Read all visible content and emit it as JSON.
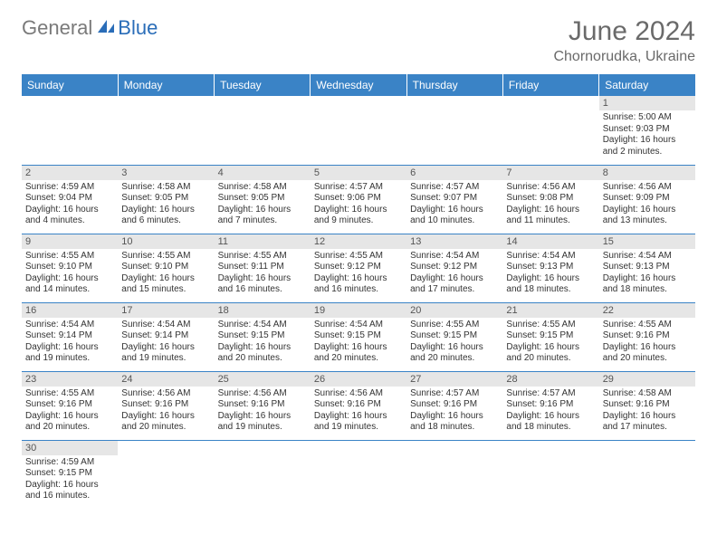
{
  "logo": {
    "text_gray": "General",
    "text_blue": "Blue"
  },
  "title": "June 2024",
  "location": "Chornorudka, Ukraine",
  "colors": {
    "header_bg": "#3a83c6",
    "header_text": "#ffffff",
    "daynum_bg": "#e6e6e6",
    "border": "#3a83c6",
    "title_color": "#6a6a6a",
    "logo_gray": "#7a7a7a",
    "logo_blue": "#2a6db8"
  },
  "weekdays": [
    "Sunday",
    "Monday",
    "Tuesday",
    "Wednesday",
    "Thursday",
    "Friday",
    "Saturday"
  ],
  "weeks": [
    [
      null,
      null,
      null,
      null,
      null,
      null,
      {
        "n": "1",
        "sunrise": "Sunrise: 5:00 AM",
        "sunset": "Sunset: 9:03 PM",
        "day1": "Daylight: 16 hours",
        "day2": "and 2 minutes."
      }
    ],
    [
      {
        "n": "2",
        "sunrise": "Sunrise: 4:59 AM",
        "sunset": "Sunset: 9:04 PM",
        "day1": "Daylight: 16 hours",
        "day2": "and 4 minutes."
      },
      {
        "n": "3",
        "sunrise": "Sunrise: 4:58 AM",
        "sunset": "Sunset: 9:05 PM",
        "day1": "Daylight: 16 hours",
        "day2": "and 6 minutes."
      },
      {
        "n": "4",
        "sunrise": "Sunrise: 4:58 AM",
        "sunset": "Sunset: 9:05 PM",
        "day1": "Daylight: 16 hours",
        "day2": "and 7 minutes."
      },
      {
        "n": "5",
        "sunrise": "Sunrise: 4:57 AM",
        "sunset": "Sunset: 9:06 PM",
        "day1": "Daylight: 16 hours",
        "day2": "and 9 minutes."
      },
      {
        "n": "6",
        "sunrise": "Sunrise: 4:57 AM",
        "sunset": "Sunset: 9:07 PM",
        "day1": "Daylight: 16 hours",
        "day2": "and 10 minutes."
      },
      {
        "n": "7",
        "sunrise": "Sunrise: 4:56 AM",
        "sunset": "Sunset: 9:08 PM",
        "day1": "Daylight: 16 hours",
        "day2": "and 11 minutes."
      },
      {
        "n": "8",
        "sunrise": "Sunrise: 4:56 AM",
        "sunset": "Sunset: 9:09 PM",
        "day1": "Daylight: 16 hours",
        "day2": "and 13 minutes."
      }
    ],
    [
      {
        "n": "9",
        "sunrise": "Sunrise: 4:55 AM",
        "sunset": "Sunset: 9:10 PM",
        "day1": "Daylight: 16 hours",
        "day2": "and 14 minutes."
      },
      {
        "n": "10",
        "sunrise": "Sunrise: 4:55 AM",
        "sunset": "Sunset: 9:10 PM",
        "day1": "Daylight: 16 hours",
        "day2": "and 15 minutes."
      },
      {
        "n": "11",
        "sunrise": "Sunrise: 4:55 AM",
        "sunset": "Sunset: 9:11 PM",
        "day1": "Daylight: 16 hours",
        "day2": "and 16 minutes."
      },
      {
        "n": "12",
        "sunrise": "Sunrise: 4:55 AM",
        "sunset": "Sunset: 9:12 PM",
        "day1": "Daylight: 16 hours",
        "day2": "and 16 minutes."
      },
      {
        "n": "13",
        "sunrise": "Sunrise: 4:54 AM",
        "sunset": "Sunset: 9:12 PM",
        "day1": "Daylight: 16 hours",
        "day2": "and 17 minutes."
      },
      {
        "n": "14",
        "sunrise": "Sunrise: 4:54 AM",
        "sunset": "Sunset: 9:13 PM",
        "day1": "Daylight: 16 hours",
        "day2": "and 18 minutes."
      },
      {
        "n": "15",
        "sunrise": "Sunrise: 4:54 AM",
        "sunset": "Sunset: 9:13 PM",
        "day1": "Daylight: 16 hours",
        "day2": "and 18 minutes."
      }
    ],
    [
      {
        "n": "16",
        "sunrise": "Sunrise: 4:54 AM",
        "sunset": "Sunset: 9:14 PM",
        "day1": "Daylight: 16 hours",
        "day2": "and 19 minutes."
      },
      {
        "n": "17",
        "sunrise": "Sunrise: 4:54 AM",
        "sunset": "Sunset: 9:14 PM",
        "day1": "Daylight: 16 hours",
        "day2": "and 19 minutes."
      },
      {
        "n": "18",
        "sunrise": "Sunrise: 4:54 AM",
        "sunset": "Sunset: 9:15 PM",
        "day1": "Daylight: 16 hours",
        "day2": "and 20 minutes."
      },
      {
        "n": "19",
        "sunrise": "Sunrise: 4:54 AM",
        "sunset": "Sunset: 9:15 PM",
        "day1": "Daylight: 16 hours",
        "day2": "and 20 minutes."
      },
      {
        "n": "20",
        "sunrise": "Sunrise: 4:55 AM",
        "sunset": "Sunset: 9:15 PM",
        "day1": "Daylight: 16 hours",
        "day2": "and 20 minutes."
      },
      {
        "n": "21",
        "sunrise": "Sunrise: 4:55 AM",
        "sunset": "Sunset: 9:15 PM",
        "day1": "Daylight: 16 hours",
        "day2": "and 20 minutes."
      },
      {
        "n": "22",
        "sunrise": "Sunrise: 4:55 AM",
        "sunset": "Sunset: 9:16 PM",
        "day1": "Daylight: 16 hours",
        "day2": "and 20 minutes."
      }
    ],
    [
      {
        "n": "23",
        "sunrise": "Sunrise: 4:55 AM",
        "sunset": "Sunset: 9:16 PM",
        "day1": "Daylight: 16 hours",
        "day2": "and 20 minutes."
      },
      {
        "n": "24",
        "sunrise": "Sunrise: 4:56 AM",
        "sunset": "Sunset: 9:16 PM",
        "day1": "Daylight: 16 hours",
        "day2": "and 20 minutes."
      },
      {
        "n": "25",
        "sunrise": "Sunrise: 4:56 AM",
        "sunset": "Sunset: 9:16 PM",
        "day1": "Daylight: 16 hours",
        "day2": "and 19 minutes."
      },
      {
        "n": "26",
        "sunrise": "Sunrise: 4:56 AM",
        "sunset": "Sunset: 9:16 PM",
        "day1": "Daylight: 16 hours",
        "day2": "and 19 minutes."
      },
      {
        "n": "27",
        "sunrise": "Sunrise: 4:57 AM",
        "sunset": "Sunset: 9:16 PM",
        "day1": "Daylight: 16 hours",
        "day2": "and 18 minutes."
      },
      {
        "n": "28",
        "sunrise": "Sunrise: 4:57 AM",
        "sunset": "Sunset: 9:16 PM",
        "day1": "Daylight: 16 hours",
        "day2": "and 18 minutes."
      },
      {
        "n": "29",
        "sunrise": "Sunrise: 4:58 AM",
        "sunset": "Sunset: 9:16 PM",
        "day1": "Daylight: 16 hours",
        "day2": "and 17 minutes."
      }
    ],
    [
      {
        "n": "30",
        "sunrise": "Sunrise: 4:59 AM",
        "sunset": "Sunset: 9:15 PM",
        "day1": "Daylight: 16 hours",
        "day2": "and 16 minutes."
      },
      null,
      null,
      null,
      null,
      null,
      null
    ]
  ]
}
